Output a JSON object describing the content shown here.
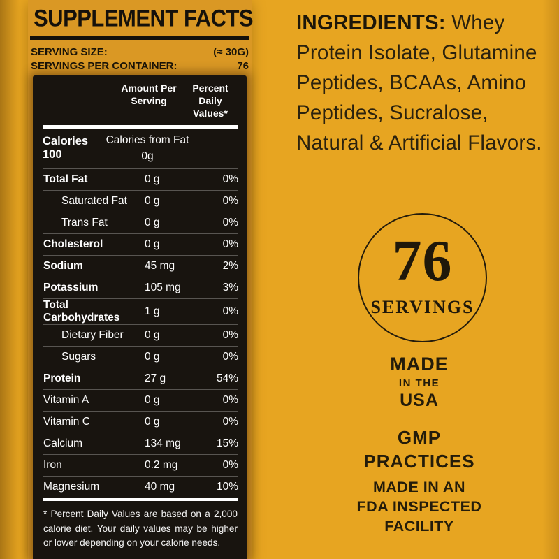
{
  "colors": {
    "background_gold": "#E7A521",
    "label_gold": "#DA9824",
    "panel_black": "#18140f",
    "text_dark": "#241c0a",
    "text_white": "#ffffff"
  },
  "label": {
    "title": "SUPPLEMENT FACTS",
    "serving_size_label": "SERVING SIZE:",
    "serving_size_value": "(≈ 30G)",
    "servings_per_container_label": "SERVINGS PER CONTAINER:",
    "servings_per_container_value": "76",
    "col_amount": "Amount Per Serving",
    "col_dv": "Percent Daily Values*",
    "calories": {
      "name": "Calories 100",
      "detail": "Calories from Fat 0g"
    },
    "rows": [
      {
        "name": "Total Fat",
        "amount": "0 g",
        "dv": "0%",
        "bold": true,
        "indent": false
      },
      {
        "name": "Saturated Fat",
        "amount": "0 g",
        "dv": "0%",
        "bold": false,
        "indent": true
      },
      {
        "name": "Trans Fat",
        "amount": "0 g",
        "dv": "0%",
        "bold": false,
        "indent": true
      },
      {
        "name": "Cholesterol",
        "amount": "0 g",
        "dv": "0%",
        "bold": true,
        "indent": false
      },
      {
        "name": "Sodium",
        "amount": "45 mg",
        "dv": "2%",
        "bold": true,
        "indent": false
      },
      {
        "name": "Potassium",
        "amount": "105 mg",
        "dv": "3%",
        "bold": true,
        "indent": false
      },
      {
        "name": "Total Carbohydrates",
        "amount": "1 g",
        "dv": "0%",
        "bold": true,
        "indent": false
      },
      {
        "name": "Dietary Fiber",
        "amount": "0 g",
        "dv": "0%",
        "bold": false,
        "indent": true
      },
      {
        "name": "Sugars",
        "amount": "0 g",
        "dv": "0%",
        "bold": false,
        "indent": true
      },
      {
        "name": "Protein",
        "amount": "27 g",
        "dv": "54%",
        "bold": true,
        "indent": false
      },
      {
        "name": "Vitamin A",
        "amount": "0 g",
        "dv": "0%",
        "bold": false,
        "indent": false
      },
      {
        "name": "Vitamin C",
        "amount": "0 g",
        "dv": "0%",
        "bold": false,
        "indent": false
      },
      {
        "name": "Calcium",
        "amount": "134 mg",
        "dv": "15%",
        "bold": false,
        "indent": false
      },
      {
        "name": "Iron",
        "amount": "0.2 mg",
        "dv": "0%",
        "bold": false,
        "indent": false
      },
      {
        "name": "Magnesium",
        "amount": "40 mg",
        "dv": "10%",
        "bold": false,
        "indent": false
      }
    ],
    "footnote": "* Percent Daily Values are based on a 2,000 calorie diet. Your daily values may be higher or lower depending on your calorie needs."
  },
  "right": {
    "ingredients_label": "INGREDIENTS:",
    "ingredients_text": " Whey Protein Isolate, Glutamine Peptides, BCAAs, Amino Peptides, Sucralose, Natural & Artificial Flavors.",
    "badge": {
      "number": "76",
      "caption": "SERVINGS"
    },
    "made_usa": {
      "line1": "MADE",
      "line2": "IN THE",
      "line3": "USA"
    },
    "gmp": {
      "line1": "GMP",
      "line2": "PRACTICES"
    },
    "fda": {
      "line1": "MADE IN AN",
      "line2": "FDA INSPECTED",
      "line3": "FACILITY"
    }
  }
}
